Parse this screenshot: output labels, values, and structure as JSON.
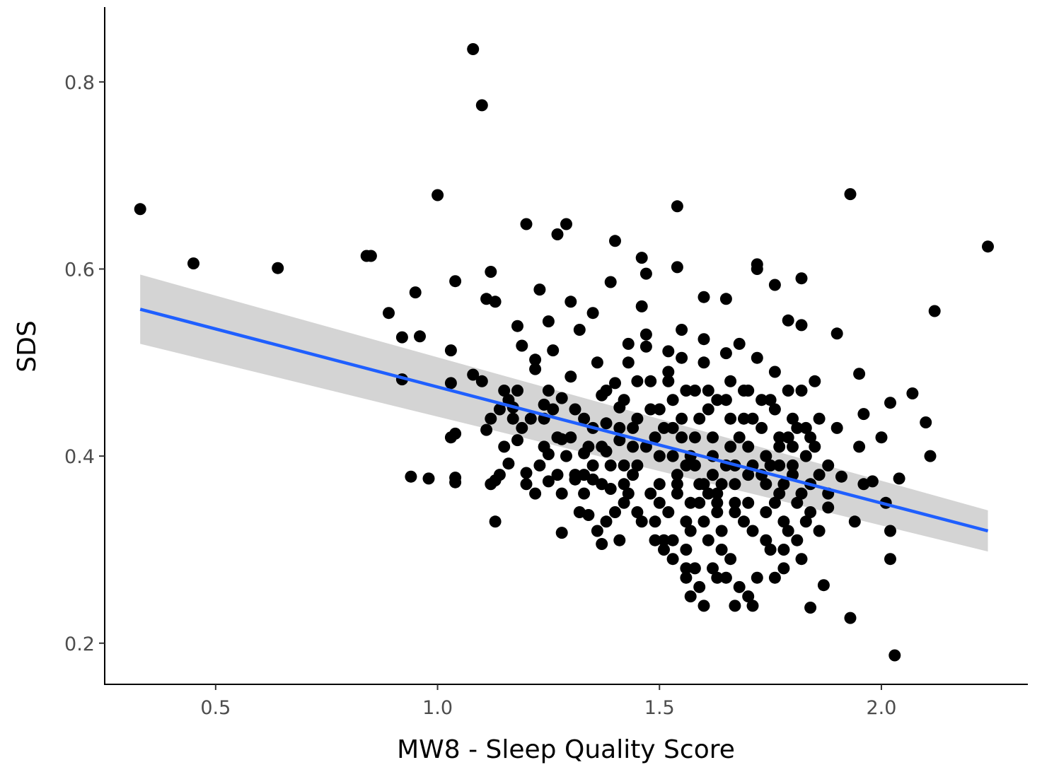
{
  "chart_data": {
    "type": "scatter",
    "xlabel": "MW8 - Sleep Quality Score",
    "ylabel": "SDS",
    "xlim": [
      0.25,
      2.33
    ],
    "ylim": [
      0.156,
      0.88
    ],
    "x_ticks": [
      0.5,
      1.0,
      1.5,
      2.0
    ],
    "x_tick_labels": [
      "0.5",
      "1.0",
      "1.5",
      "2.0"
    ],
    "y_ticks": [
      0.2,
      0.4,
      0.6,
      0.8
    ],
    "y_tick_labels": [
      "0.2",
      "0.4",
      "0.6",
      "0.8"
    ],
    "grid": false,
    "legend": "none",
    "colors": {
      "points": "#000000",
      "fit_line": "#1f5fff",
      "confidence_band": "#cccccc",
      "axis": "#000000"
    },
    "fit": {
      "method": "linear",
      "x": [
        0.33,
        2.24
      ],
      "y": [
        0.557,
        0.32
      ],
      "ci_lower": [
        0.52,
        0.298
      ],
      "ci_upper": [
        0.594,
        0.342
      ]
    },
    "points": [
      [
        0.33,
        0.664
      ],
      [
        0.45,
        0.606
      ],
      [
        0.64,
        0.601
      ],
      [
        0.84,
        0.614
      ],
      [
        0.85,
        0.614
      ],
      [
        0.89,
        0.553
      ],
      [
        0.92,
        0.527
      ],
      [
        0.92,
        0.482
      ],
      [
        0.95,
        0.575
      ],
      [
        0.96,
        0.528
      ],
      [
        0.94,
        0.378
      ],
      [
        0.98,
        0.376
      ],
      [
        1.0,
        0.679
      ],
      [
        1.03,
        0.513
      ],
      [
        1.03,
        0.478
      ],
      [
        1.03,
        0.42
      ],
      [
        1.04,
        0.424
      ],
      [
        1.04,
        0.377
      ],
      [
        1.04,
        0.372
      ],
      [
        1.04,
        0.587
      ],
      [
        1.08,
        0.835
      ],
      [
        1.1,
        0.775
      ],
      [
        1.08,
        0.487
      ],
      [
        1.1,
        0.48
      ],
      [
        1.11,
        0.568
      ],
      [
        1.12,
        0.597
      ],
      [
        1.13,
        0.565
      ],
      [
        1.11,
        0.428
      ],
      [
        1.12,
        0.37
      ],
      [
        1.13,
        0.374
      ],
      [
        1.14,
        0.38
      ],
      [
        1.13,
        0.33
      ],
      [
        1.15,
        0.47
      ],
      [
        1.16,
        0.392
      ],
      [
        1.17,
        0.452
      ],
      [
        1.17,
        0.44
      ],
      [
        1.18,
        0.417
      ],
      [
        1.18,
        0.539
      ],
      [
        1.19,
        0.518
      ],
      [
        1.2,
        0.382
      ],
      [
        1.2,
        0.37
      ],
      [
        1.2,
        0.648
      ],
      [
        1.22,
        0.503
      ],
      [
        1.22,
        0.493
      ],
      [
        1.23,
        0.578
      ],
      [
        1.24,
        0.455
      ],
      [
        1.24,
        0.44
      ],
      [
        1.25,
        0.544
      ],
      [
        1.25,
        0.402
      ],
      [
        1.25,
        0.373
      ],
      [
        1.26,
        0.513
      ],
      [
        1.27,
        0.637
      ],
      [
        1.28,
        0.462
      ],
      [
        1.28,
        0.418
      ],
      [
        1.28,
        0.318
      ],
      [
        1.29,
        0.648
      ],
      [
        1.3,
        0.565
      ],
      [
        1.3,
        0.485
      ],
      [
        1.31,
        0.375
      ],
      [
        1.32,
        0.535
      ],
      [
        1.33,
        0.44
      ],
      [
        1.33,
        0.403
      ],
      [
        1.33,
        0.38
      ],
      [
        1.34,
        0.337
      ],
      [
        1.35,
        0.375
      ],
      [
        1.35,
        0.553
      ],
      [
        1.36,
        0.5
      ],
      [
        1.37,
        0.465
      ],
      [
        1.38,
        0.47
      ],
      [
        1.38,
        0.435
      ],
      [
        1.38,
        0.405
      ],
      [
        1.39,
        0.365
      ],
      [
        1.37,
        0.306
      ],
      [
        1.4,
        0.63
      ],
      [
        1.39,
        0.586
      ],
      [
        1.4,
        0.478
      ],
      [
        1.41,
        0.452
      ],
      [
        1.41,
        0.417
      ],
      [
        1.42,
        0.39
      ],
      [
        1.42,
        0.37
      ],
      [
        1.42,
        0.35
      ],
      [
        1.43,
        0.52
      ],
      [
        1.43,
        0.5
      ],
      [
        1.44,
        0.43
      ],
      [
        1.44,
        0.41
      ],
      [
        1.44,
        0.38
      ],
      [
        1.45,
        0.44
      ],
      [
        1.46,
        0.33
      ],
      [
        1.46,
        0.612
      ],
      [
        1.47,
        0.595
      ],
      [
        1.47,
        0.517
      ],
      [
        1.48,
        0.48
      ],
      [
        1.48,
        0.45
      ],
      [
        1.49,
        0.42
      ],
      [
        1.5,
        0.4
      ],
      [
        1.5,
        0.37
      ],
      [
        1.5,
        0.35
      ],
      [
        1.51,
        0.31
      ],
      [
        1.51,
        0.3
      ],
      [
        1.52,
        0.512
      ],
      [
        1.52,
        0.48
      ],
      [
        1.53,
        0.46
      ],
      [
        1.53,
        0.43
      ],
      [
        1.53,
        0.4
      ],
      [
        1.54,
        0.38
      ],
      [
        1.54,
        0.36
      ],
      [
        1.54,
        0.667
      ],
      [
        1.54,
        0.602
      ],
      [
        1.55,
        0.535
      ],
      [
        1.55,
        0.505
      ],
      [
        1.55,
        0.44
      ],
      [
        1.56,
        0.33
      ],
      [
        1.56,
        0.28
      ],
      [
        1.57,
        0.25
      ],
      [
        1.57,
        0.32
      ],
      [
        1.58,
        0.47
      ],
      [
        1.58,
        0.42
      ],
      [
        1.58,
        0.39
      ],
      [
        1.59,
        0.37
      ],
      [
        1.59,
        0.35
      ],
      [
        1.6,
        0.57
      ],
      [
        1.6,
        0.525
      ],
      [
        1.6,
        0.5
      ],
      [
        1.61,
        0.47
      ],
      [
        1.61,
        0.45
      ],
      [
        1.62,
        0.42
      ],
      [
        1.62,
        0.4
      ],
      [
        1.62,
        0.38
      ],
      [
        1.63,
        0.36
      ],
      [
        1.63,
        0.34
      ],
      [
        1.63,
        0.27
      ],
      [
        1.64,
        0.32
      ],
      [
        1.64,
        0.3
      ],
      [
        1.65,
        0.568
      ],
      [
        1.65,
        0.51
      ],
      [
        1.65,
        0.46
      ],
      [
        1.66,
        0.44
      ],
      [
        1.66,
        0.41
      ],
      [
        1.67,
        0.39
      ],
      [
        1.67,
        0.37
      ],
      [
        1.67,
        0.34
      ],
      [
        1.68,
        0.26
      ],
      [
        1.68,
        0.52
      ],
      [
        1.69,
        0.47
      ],
      [
        1.69,
        0.44
      ],
      [
        1.7,
        0.41
      ],
      [
        1.7,
        0.38
      ],
      [
        1.7,
        0.35
      ],
      [
        1.71,
        0.32
      ],
      [
        1.71,
        0.24
      ],
      [
        1.72,
        0.605
      ],
      [
        1.72,
        0.6
      ],
      [
        1.72,
        0.505
      ],
      [
        1.73,
        0.46
      ],
      [
        1.73,
        0.43
      ],
      [
        1.74,
        0.4
      ],
      [
        1.74,
        0.37
      ],
      [
        1.74,
        0.34
      ],
      [
        1.75,
        0.3
      ],
      [
        1.76,
        0.583
      ],
      [
        1.76,
        0.49
      ],
      [
        1.76,
        0.45
      ],
      [
        1.77,
        0.42
      ],
      [
        1.77,
        0.39
      ],
      [
        1.77,
        0.36
      ],
      [
        1.78,
        0.33
      ],
      [
        1.78,
        0.28
      ],
      [
        1.79,
        0.545
      ],
      [
        1.79,
        0.47
      ],
      [
        1.8,
        0.44
      ],
      [
        1.8,
        0.41
      ],
      [
        1.8,
        0.38
      ],
      [
        1.81,
        0.35
      ],
      [
        1.81,
        0.31
      ],
      [
        1.82,
        0.59
      ],
      [
        1.82,
        0.54
      ],
      [
        1.82,
        0.47
      ],
      [
        1.83,
        0.43
      ],
      [
        1.83,
        0.4
      ],
      [
        1.84,
        0.37
      ],
      [
        1.84,
        0.34
      ],
      [
        1.84,
        0.238
      ],
      [
        1.85,
        0.48
      ],
      [
        1.86,
        0.44
      ],
      [
        1.86,
        0.38
      ],
      [
        1.87,
        0.262
      ],
      [
        1.88,
        0.345
      ],
      [
        1.9,
        0.531
      ],
      [
        1.9,
        0.43
      ],
      [
        1.91,
        0.378
      ],
      [
        1.93,
        0.68
      ],
      [
        1.93,
        0.227
      ],
      [
        1.94,
        0.33
      ],
      [
        1.95,
        0.488
      ],
      [
        1.95,
        0.41
      ],
      [
        1.96,
        0.445
      ],
      [
        1.96,
        0.37
      ],
      [
        1.98,
        0.373
      ],
      [
        2.0,
        0.42
      ],
      [
        2.01,
        0.35
      ],
      [
        2.02,
        0.457
      ],
      [
        2.02,
        0.32
      ],
      [
        2.02,
        0.29
      ],
      [
        2.03,
        0.187
      ],
      [
        2.04,
        0.376
      ],
      [
        2.07,
        0.467
      ],
      [
        2.1,
        0.436
      ],
      [
        2.11,
        0.4
      ],
      [
        2.12,
        0.555
      ],
      [
        2.24,
        0.624
      ],
      [
        1.46,
        0.56
      ],
      [
        1.47,
        0.53
      ],
      [
        1.52,
        0.49
      ],
      [
        1.56,
        0.47
      ],
      [
        1.48,
        0.36
      ],
      [
        1.52,
        0.34
      ],
      [
        1.56,
        0.3
      ],
      [
        1.58,
        0.28
      ],
      [
        1.61,
        0.31
      ],
      [
        1.64,
        0.37
      ],
      [
        1.66,
        0.29
      ],
      [
        1.69,
        0.33
      ],
      [
        1.72,
        0.27
      ],
      [
        1.75,
        0.39
      ],
      [
        1.79,
        0.32
      ],
      [
        1.82,
        0.36
      ],
      [
        1.85,
        0.41
      ],
      [
        1.88,
        0.39
      ],
      [
        1.43,
        0.36
      ],
      [
        1.4,
        0.34
      ],
      [
        1.36,
        0.32
      ],
      [
        1.34,
        0.41
      ],
      [
        1.3,
        0.42
      ],
      [
        1.27,
        0.38
      ],
      [
        1.24,
        0.41
      ],
      [
        1.22,
        0.36
      ],
      [
        1.26,
        0.45
      ],
      [
        1.31,
        0.45
      ],
      [
        1.35,
        0.43
      ],
      [
        1.39,
        0.39
      ],
      [
        1.45,
        0.39
      ],
      [
        1.49,
        0.33
      ],
      [
        1.53,
        0.31
      ],
      [
        1.57,
        0.35
      ],
      [
        1.6,
        0.33
      ],
      [
        1.65,
        0.39
      ],
      [
        1.68,
        0.42
      ],
      [
        1.71,
        0.44
      ],
      [
        1.73,
        0.38
      ],
      [
        1.76,
        0.35
      ],
      [
        1.78,
        0.37
      ],
      [
        1.81,
        0.43
      ],
      [
        1.59,
        0.26
      ],
      [
        1.62,
        0.28
      ],
      [
        1.67,
        0.24
      ],
      [
        1.74,
        0.31
      ],
      [
        1.78,
        0.3
      ],
      [
        1.83,
        0.33
      ],
      [
        1.5,
        0.45
      ],
      [
        1.55,
        0.42
      ],
      [
        1.59,
        0.44
      ],
      [
        1.63,
        0.46
      ],
      [
        1.66,
        0.48
      ],
      [
        1.7,
        0.47
      ],
      [
        1.75,
        0.46
      ],
      [
        1.79,
        0.42
      ],
      [
        1.57,
        0.4
      ],
      [
        1.61,
        0.36
      ],
      [
        1.54,
        0.37
      ],
      [
        1.47,
        0.41
      ],
      [
        1.41,
        0.43
      ],
      [
        1.37,
        0.37
      ],
      [
        1.33,
        0.36
      ],
      [
        1.29,
        0.4
      ],
      [
        1.21,
        0.44
      ],
      [
        1.18,
        0.47
      ],
      [
        1.16,
        0.46
      ],
      [
        1.14,
        0.45
      ],
      [
        1.23,
        0.39
      ],
      [
        1.28,
        0.36
      ],
      [
        1.32,
        0.34
      ],
      [
        1.37,
        0.41
      ],
      [
        1.42,
        0.46
      ],
      [
        1.45,
        0.48
      ],
      [
        1.51,
        0.43
      ],
      [
        1.56,
        0.39
      ],
      [
        1.6,
        0.37
      ],
      [
        1.63,
        0.35
      ],
      [
        1.67,
        0.35
      ],
      [
        1.71,
        0.39
      ],
      [
        1.77,
        0.41
      ],
      [
        1.8,
        0.39
      ],
      [
        1.84,
        0.42
      ],
      [
        1.88,
        0.36
      ],
      [
        1.86,
        0.32
      ],
      [
        1.82,
        0.29
      ],
      [
        1.76,
        0.27
      ],
      [
        1.7,
        0.25
      ],
      [
        1.65,
        0.27
      ],
      [
        1.6,
        0.24
      ],
      [
        1.56,
        0.27
      ],
      [
        1.53,
        0.29
      ],
      [
        1.49,
        0.31
      ],
      [
        1.45,
        0.34
      ],
      [
        1.41,
        0.31
      ],
      [
        1.38,
        0.33
      ],
      [
        1.35,
        0.39
      ],
      [
        1.31,
        0.38
      ],
      [
        1.27,
        0.42
      ],
      [
        1.25,
        0.47
      ],
      [
        1.19,
        0.43
      ],
      [
        1.15,
        0.41
      ],
      [
        1.12,
        0.44
      ]
    ]
  }
}
